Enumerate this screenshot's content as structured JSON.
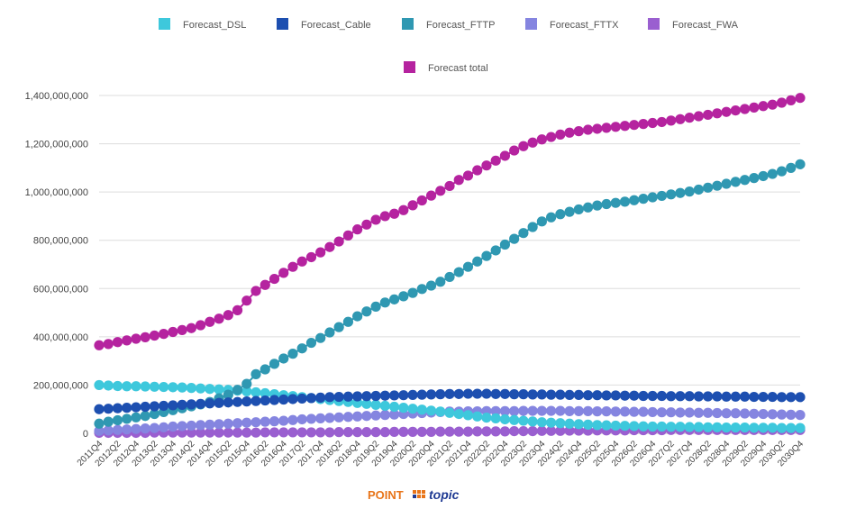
{
  "logo": {
    "part1": "POINT",
    "part2": "topic"
  },
  "chart_data": {
    "type": "line",
    "title": "",
    "xlabel": "",
    "ylabel": "",
    "ylim": [
      0,
      1400000000
    ],
    "yticks": [
      0,
      200000000,
      400000000,
      600000000,
      800000000,
      1000000000,
      1200000000,
      1400000000
    ],
    "ytick_labels": [
      "0",
      "200,000,000",
      "400,000,000",
      "600,000,000",
      "800,000,000",
      "1,000,000,000",
      "1,200,000,000",
      "1,400,000,000"
    ],
    "grid": "horizontal",
    "legend_position": "top",
    "x": [
      "2011Q4",
      "2012Q1",
      "2012Q2",
      "2012Q3",
      "2012Q4",
      "2013Q1",
      "2013Q2",
      "2013Q3",
      "2013Q4",
      "2014Q1",
      "2014Q2",
      "2014Q3",
      "2014Q4",
      "2015Q1",
      "2015Q2",
      "2015Q3",
      "2015Q4",
      "2016Q1",
      "2016Q2",
      "2016Q3",
      "2016Q4",
      "2017Q1",
      "2017Q2",
      "2017Q3",
      "2017Q4",
      "2018Q1",
      "2018Q2",
      "2018Q3",
      "2018Q4",
      "2019Q1",
      "2019Q2",
      "2019Q3",
      "2019Q4",
      "2020Q1",
      "2020Q2",
      "2020Q3",
      "2020Q4",
      "2021Q1",
      "2021Q2",
      "2021Q3",
      "2021Q4",
      "2022Q1",
      "2022Q2",
      "2022Q3",
      "2022Q4",
      "2023Q1",
      "2023Q2",
      "2023Q3",
      "2023Q4",
      "2024Q1",
      "2024Q2",
      "2024Q3",
      "2024Q4",
      "2025Q1",
      "2025Q2",
      "2025Q3",
      "2025Q4",
      "2026Q1",
      "2026Q2",
      "2026Q3",
      "2026Q4",
      "2027Q1",
      "2027Q2",
      "2027Q3",
      "2027Q4",
      "2028Q1",
      "2028Q2",
      "2028Q3",
      "2028Q4",
      "2029Q1",
      "2029Q2",
      "2029Q3",
      "2029Q4",
      "2030Q1",
      "2030Q2",
      "2030Q3",
      "2030Q4"
    ],
    "x_tick_labels_shown": [
      "2011Q4",
      "2012Q2",
      "2012Q4",
      "2013Q2",
      "2013Q4",
      "2014Q2",
      "2014Q4",
      "2015Q2",
      "2015Q4",
      "2016Q2",
      "2016Q4",
      "2017Q2",
      "2017Q4",
      "2018Q2",
      "2018Q4",
      "2019Q2",
      "2019Q4",
      "2020Q2",
      "2020Q4",
      "2021Q2",
      "2021Q4",
      "2022Q2",
      "2022Q4",
      "2023Q2",
      "2023Q4",
      "2024Q2",
      "2024Q4",
      "2025Q2",
      "2025Q4",
      "2026Q2",
      "2026Q4",
      "2027Q2",
      "2027Q4",
      "2028Q2",
      "2028Q4",
      "2029Q2",
      "2029Q4",
      "2030Q2",
      "2030Q4"
    ],
    "series": [
      {
        "name": "Forecast_DSL",
        "color": "#3ec8dc",
        "values": [
          200,
          198,
          196,
          195,
          195,
          194,
          193,
          192,
          191,
          190,
          188,
          186,
          184,
          182,
          180,
          177,
          174,
          170,
          166,
          162,
          158,
          154,
          150,
          146,
          142,
          138,
          134,
          130,
          126,
          122,
          118,
          114,
          110,
          106,
          102,
          98,
          94,
          90,
          85,
          80,
          75,
          70,
          65,
          62,
          58,
          55,
          52,
          49,
          46,
          44,
          42,
          40,
          38,
          36,
          34,
          33,
          32,
          31,
          30,
          29,
          28,
          28,
          27,
          27,
          26,
          26,
          25,
          25,
          24,
          24,
          24,
          23,
          23,
          23,
          22,
          22,
          22
        ]
      },
      {
        "name": "Forecast_Cable",
        "color": "#1d4fb0",
        "values": [
          100,
          102,
          104,
          106,
          108,
          110,
          112,
          114,
          116,
          118,
          120,
          122,
          124,
          126,
          128,
          130,
          132,
          134,
          136,
          138,
          140,
          142,
          144,
          146,
          148,
          150,
          151,
          152,
          153,
          154,
          155,
          156,
          157,
          158,
          159,
          160,
          161,
          162,
          163,
          163,
          164,
          164,
          164,
          163,
          163,
          162,
          162,
          161,
          161,
          160,
          160,
          159,
          159,
          158,
          158,
          157,
          157,
          156,
          156,
          155,
          155,
          155,
          154,
          154,
          154,
          153,
          153,
          153,
          152,
          152,
          152,
          151,
          151,
          151,
          150,
          150,
          150
        ]
      },
      {
        "name": "Forecast_FTTP",
        "color": "#2f98b2",
        "values": [
          40,
          48,
          54,
          60,
          66,
          72,
          80,
          88,
          96,
          104,
          112,
          120,
          130,
          145,
          160,
          180,
          205,
          245,
          265,
          288,
          310,
          330,
          352,
          375,
          395,
          418,
          440,
          462,
          485,
          505,
          525,
          542,
          555,
          568,
          582,
          598,
          612,
          628,
          648,
          668,
          690,
          712,
          735,
          758,
          782,
          806,
          830,
          855,
          878,
          895,
          908,
          918,
          928,
          936,
          944,
          950,
          955,
          960,
          966,
          972,
          978,
          984,
          990,
          996,
          1002,
          1010,
          1018,
          1026,
          1034,
          1042,
          1050,
          1058,
          1066,
          1075,
          1086,
          1100,
          1115
        ]
      },
      {
        "name": "Forecast_FTTX",
        "color": "#8585e0",
        "values": [
          10,
          12,
          14,
          16,
          18,
          20,
          22,
          25,
          28,
          30,
          32,
          34,
          36,
          38,
          40,
          42,
          44,
          46,
          48,
          50,
          52,
          55,
          58,
          60,
          62,
          64,
          66,
          68,
          70,
          72,
          74,
          76,
          78,
          80,
          82,
          84,
          86,
          88,
          90,
          90,
          91,
          91,
          92,
          92,
          92,
          92,
          93,
          93,
          93,
          93,
          93,
          92,
          92,
          92,
          91,
          91,
          90,
          90,
          89,
          89,
          88,
          87,
          87,
          86,
          86,
          85,
          85,
          84,
          83,
          83,
          82,
          81,
          80,
          79,
          78,
          77,
          76
        ]
      },
      {
        "name": "Forecast_FWA",
        "color": "#9a5fd0",
        "values": [
          2,
          2,
          2,
          2,
          2,
          2,
          3,
          3,
          3,
          3,
          3,
          3,
          3,
          3,
          3,
          3,
          3,
          3,
          4,
          4,
          4,
          4,
          4,
          4,
          4,
          4,
          5,
          5,
          5,
          5,
          5,
          5,
          6,
          6,
          6,
          6,
          6,
          7,
          7,
          7,
          7,
          8,
          8,
          8,
          8,
          9,
          9,
          9,
          10,
          10,
          10,
          11,
          11,
          11,
          12,
          12,
          12,
          12,
          13,
          13,
          13,
          13,
          14,
          14,
          14,
          14,
          14,
          14,
          14,
          14,
          14,
          14,
          14,
          14,
          14,
          14,
          14
        ]
      },
      {
        "name": "Forecast total",
        "color": "#b5239f",
        "values": [
          365,
          370,
          378,
          385,
          392,
          398,
          405,
          412,
          420,
          428,
          436,
          448,
          462,
          475,
          490,
          510,
          550,
          590,
          615,
          640,
          665,
          690,
          712,
          730,
          750,
          772,
          795,
          820,
          845,
          865,
          885,
          900,
          910,
          925,
          945,
          965,
          985,
          1005,
          1025,
          1050,
          1068,
          1090,
          1110,
          1130,
          1150,
          1172,
          1190,
          1205,
          1218,
          1228,
          1238,
          1246,
          1252,
          1258,
          1262,
          1266,
          1270,
          1274,
          1278,
          1282,
          1286,
          1290,
          1296,
          1302,
          1308,
          1314,
          1320,
          1326,
          1332,
          1338,
          1344,
          1350,
          1356,
          1362,
          1370,
          1380,
          1390
        ]
      }
    ],
    "value_unit_note_millions": true
  }
}
